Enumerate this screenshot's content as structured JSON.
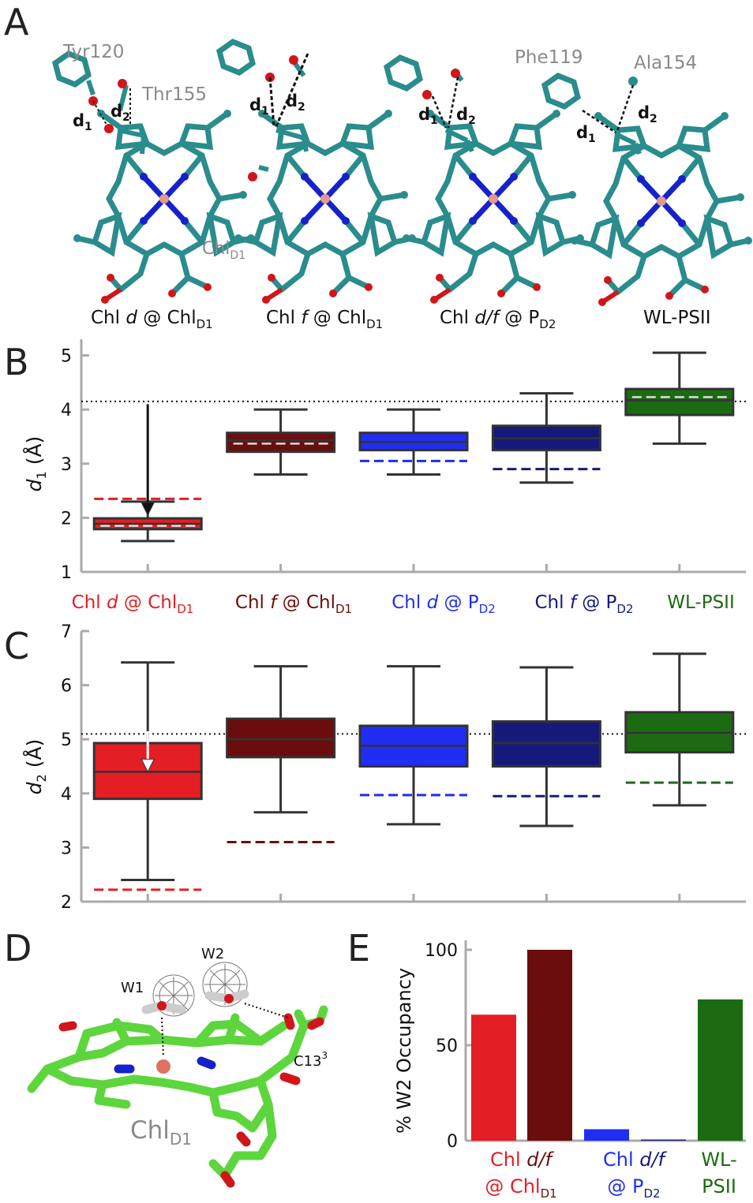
{
  "colors": {
    "chl_d_chlD1": "#e31e24",
    "chl_f_chlD1": "#6b0d0d",
    "chl_d_pD2": "#1f2ef2",
    "chl_f_pD2": "#151a7a",
    "wl_psii": "#1c6b12",
    "teal": "#2a8c8c",
    "oxygen": "#d0161a",
    "nitrogen": "#1522cc",
    "magnesium": "#e39a8a",
    "green_chl": "#5cd63c",
    "axis": "#aaaaaa",
    "label_gray": "#8a8a8a"
  },
  "panelA": {
    "letter": "A",
    "residues": {
      "tyr": "Tyr120",
      "thr": "Thr155",
      "phe": "Phe119",
      "ala": "Ala154",
      "chl_label": "Chl",
      "chl_sub": "D1"
    },
    "dist": {
      "d": "d",
      "s1": "1",
      "s2": "2"
    },
    "captions": [
      {
        "pre": "Chl ",
        "it": "d",
        "post": " @ Chl",
        "sub": "D1"
      },
      {
        "pre": "Chl ",
        "it": "f",
        "post": " @ Chl",
        "sub": "D1"
      },
      {
        "pre": "Chl ",
        "it": "d/f",
        "post": " @ P",
        "sub": "D2"
      },
      {
        "pre": "WL-PSII",
        "it": "",
        "post": "",
        "sub": ""
      }
    ]
  },
  "chart_data": [
    {
      "panel": "B",
      "type": "box",
      "ylabel_var": "d",
      "ylabel_sub": "1",
      "ylabel_unit": " (Å)",
      "ylim": [
        1,
        5.3
      ],
      "yticks": [
        1,
        2,
        3,
        4,
        5
      ],
      "reference_line": 4.15,
      "categories": [
        {
          "pre": "Chl ",
          "it": "d",
          "post": " @ Chl",
          "sub": "D1"
        },
        {
          "pre": "Chl ",
          "it": "f",
          "post": " @ Chl",
          "sub": "D1"
        },
        {
          "pre": "Chl ",
          "it": "d",
          "post": " @ P",
          "sub": "D2"
        },
        {
          "pre": "Chl ",
          "it": "f",
          "post": " @ P",
          "sub": "D2"
        },
        {
          "pre": "WL-PSII",
          "it": "",
          "post": "",
          "sub": ""
        }
      ],
      "boxes": [
        {
          "min": 1.57,
          "q1": 1.79,
          "median": 1.89,
          "q3": 1.99,
          "max": 2.3,
          "mean": 1.85,
          "dashed": 2.35,
          "arrow_from": 4.1,
          "arrow_to": 2.05,
          "arrow_color": "#111111"
        },
        {
          "min": 2.8,
          "q1": 3.22,
          "median": 3.43,
          "q3": 3.57,
          "max": 4.0,
          "mean": 3.37
        },
        {
          "min": 2.8,
          "q1": 3.25,
          "median": 3.4,
          "q3": 3.57,
          "max": 4.0,
          "dashed": 3.05
        },
        {
          "min": 2.65,
          "q1": 3.25,
          "median": 3.47,
          "q3": 3.7,
          "max": 4.3,
          "dashed": 2.9
        },
        {
          "min": 3.37,
          "q1": 3.9,
          "median": 4.17,
          "q3": 4.38,
          "max": 5.05,
          "mean": 4.23
        }
      ]
    },
    {
      "panel": "C",
      "type": "box",
      "ylabel_var": "d",
      "ylabel_sub": "2",
      "ylabel_unit": " (Å)",
      "ylim": [
        2,
        7
      ],
      "yticks": [
        2,
        3,
        4,
        5,
        6,
        7
      ],
      "reference_line": 5.1,
      "boxes": [
        {
          "min": 2.4,
          "q1": 3.9,
          "median": 4.4,
          "q3": 4.93,
          "max": 6.42,
          "dashed": 2.22,
          "arrow_from": 5.15,
          "arrow_to": 4.4,
          "arrow_color": "#ffffff"
        },
        {
          "min": 3.65,
          "q1": 4.67,
          "median": 5.0,
          "q3": 5.38,
          "max": 6.35,
          "dashed": 3.1
        },
        {
          "min": 3.43,
          "q1": 4.5,
          "median": 4.88,
          "q3": 5.25,
          "max": 6.35,
          "dashed": 3.97
        },
        {
          "min": 3.4,
          "q1": 4.5,
          "median": 4.93,
          "q3": 5.33,
          "max": 6.33,
          "dashed": 3.95
        },
        {
          "min": 3.78,
          "q1": 4.76,
          "median": 5.12,
          "q3": 5.5,
          "max": 6.58,
          "dashed": 4.2
        }
      ]
    },
    {
      "panel": "E",
      "type": "bar",
      "ylabel": "% W2 Occupancy",
      "ylim": [
        0,
        100
      ],
      "yticks": [
        0,
        50,
        100
      ],
      "values": [
        66,
        100,
        6,
        0.5,
        74
      ],
      "groups": [
        {
          "l1a": "Chl ",
          "l1b": "d/f",
          "l2a": "@ Chl",
          "l2sub": "D1"
        },
        {
          "l1a": "Chl ",
          "l1b": "d/f",
          "l2a": "@ P",
          "l2sub": "D2"
        },
        {
          "l1a": "WL-",
          "l1b": "",
          "l2a": "PSII",
          "l2sub": ""
        }
      ]
    }
  ],
  "panelB_letter": "B",
  "panelC_letter": "C",
  "panelD": {
    "letter": "D",
    "w1": "W1",
    "w2": "W2",
    "c13": "C13",
    "c13_sup": "3",
    "chl_label": "Chl",
    "chl_sub": "D1"
  },
  "panelE_letter": "E"
}
